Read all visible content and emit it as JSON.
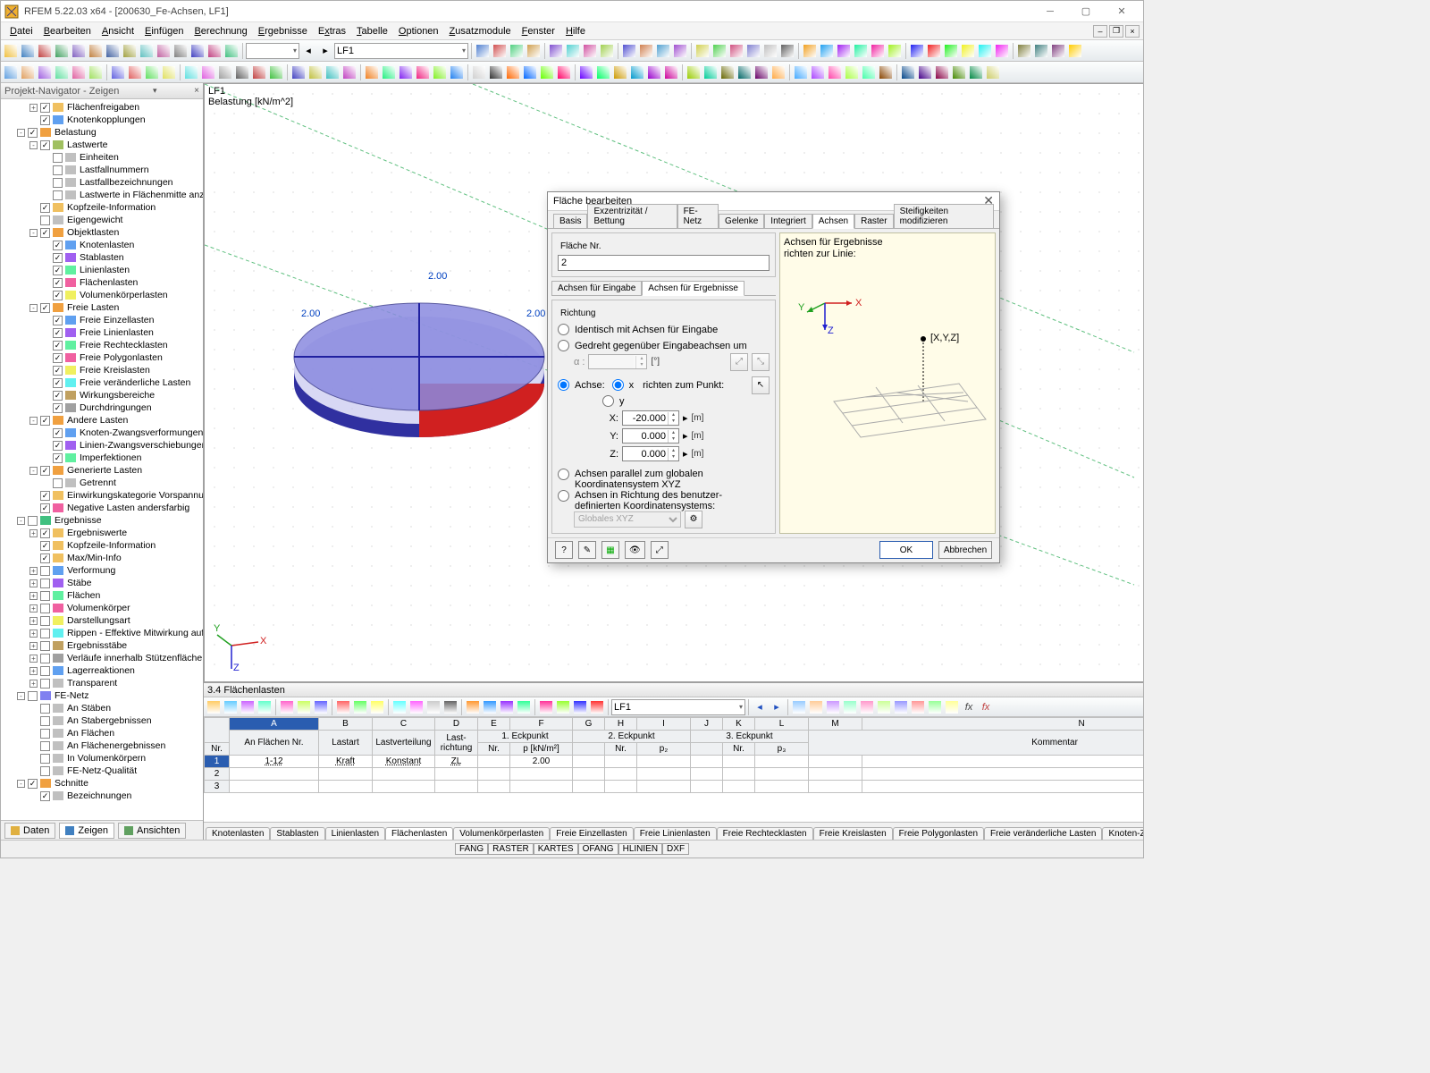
{
  "app": {
    "title": "RFEM 5.22.03 x64 - [200630_Fe-Achsen, LF1]"
  },
  "menus": [
    "Datei",
    "Bearbeiten",
    "Ansicht",
    "Einfügen",
    "Berechnung",
    "Ergebnisse",
    "Extras",
    "Tabelle",
    "Optionen",
    "Zusatzmodule",
    "Fenster",
    "Hilfe"
  ],
  "toolbar1": {
    "combo1": "",
    "combo2": "LF1"
  },
  "navigator": {
    "title": "Projekt-Navigator - Zeigen",
    "nodes": [
      {
        "d": 2,
        "e": "+",
        "c": true,
        "i": "ff",
        "t": "Flächenfreigaben"
      },
      {
        "d": 2,
        "e": " ",
        "c": true,
        "i": "kk",
        "t": "Knotenkopplungen"
      },
      {
        "d": 1,
        "e": "-",
        "c": true,
        "i": "bl",
        "t": "Belastung"
      },
      {
        "d": 2,
        "e": "-",
        "c": true,
        "i": "lw",
        "t": "Lastwerte"
      },
      {
        "d": 3,
        "e": " ",
        "c": false,
        "i": "ei",
        "t": "Einheiten"
      },
      {
        "d": 3,
        "e": " ",
        "c": false,
        "i": "ln",
        "t": "Lastfallnummern"
      },
      {
        "d": 3,
        "e": " ",
        "c": false,
        "i": "lb",
        "t": "Lastfallbezeichnungen"
      },
      {
        "d": 3,
        "e": " ",
        "c": false,
        "i": "lf",
        "t": "Lastwerte in Flächenmitte anzeigen"
      },
      {
        "d": 2,
        "e": " ",
        "c": true,
        "i": "ki",
        "t": "Kopfzeile-Information"
      },
      {
        "d": 2,
        "e": " ",
        "c": false,
        "i": "eg",
        "t": "Eigengewicht"
      },
      {
        "d": 2,
        "e": "-",
        "c": true,
        "i": "ol",
        "t": "Objektlasten"
      },
      {
        "d": 3,
        "e": " ",
        "c": true,
        "i": "kl",
        "t": "Knotenlasten"
      },
      {
        "d": 3,
        "e": " ",
        "c": true,
        "i": "sl",
        "t": "Stablasten"
      },
      {
        "d": 3,
        "e": " ",
        "c": true,
        "i": "ll",
        "t": "Linienlasten"
      },
      {
        "d": 3,
        "e": " ",
        "c": true,
        "i": "fl",
        "t": "Flächenlasten"
      },
      {
        "d": 3,
        "e": " ",
        "c": true,
        "i": "vl",
        "t": "Volumenkörperlasten"
      },
      {
        "d": 2,
        "e": "-",
        "c": true,
        "i": "fr",
        "t": "Freie Lasten"
      },
      {
        "d": 3,
        "e": " ",
        "c": true,
        "i": "fe",
        "t": "Freie Einzellasten"
      },
      {
        "d": 3,
        "e": " ",
        "c": true,
        "i": "fi",
        "t": "Freie Linienlasten"
      },
      {
        "d": 3,
        "e": " ",
        "c": true,
        "i": "fk",
        "t": "Freie Rechtecklasten"
      },
      {
        "d": 3,
        "e": " ",
        "c": true,
        "i": "fp",
        "t": "Freie Polygonlasten"
      },
      {
        "d": 3,
        "e": " ",
        "c": true,
        "i": "fc",
        "t": "Freie Kreislasten"
      },
      {
        "d": 3,
        "e": " ",
        "c": true,
        "i": "fv",
        "t": "Freie veränderliche Lasten"
      },
      {
        "d": 3,
        "e": " ",
        "c": true,
        "i": "wb",
        "t": "Wirkungsbereiche"
      },
      {
        "d": 3,
        "e": " ",
        "c": true,
        "i": "dd",
        "t": "Durchdringungen"
      },
      {
        "d": 2,
        "e": "-",
        "c": true,
        "i": "al",
        "t": "Andere Lasten"
      },
      {
        "d": 3,
        "e": " ",
        "c": true,
        "i": "kz",
        "t": "Knoten-Zwangsverformungen"
      },
      {
        "d": 3,
        "e": " ",
        "c": true,
        "i": "lz",
        "t": "Linien-Zwangsverschiebungen"
      },
      {
        "d": 3,
        "e": " ",
        "c": true,
        "i": "im",
        "t": "Imperfektionen"
      },
      {
        "d": 2,
        "e": "-",
        "c": true,
        "i": "gl",
        "t": "Generierte Lasten"
      },
      {
        "d": 3,
        "e": " ",
        "c": false,
        "i": "gt",
        "t": "Getrennt"
      },
      {
        "d": 2,
        "e": " ",
        "c": true,
        "i": "ev",
        "t": "Einwirkungskategorie Vorspannung"
      },
      {
        "d": 2,
        "e": " ",
        "c": true,
        "i": "na",
        "t": "Negative Lasten andersfarbig"
      },
      {
        "d": 1,
        "e": "-",
        "c": false,
        "i": "er",
        "t": "Ergebnisse"
      },
      {
        "d": 2,
        "e": "+",
        "c": true,
        "i": "ew",
        "t": "Ergebniswerte"
      },
      {
        "d": 2,
        "e": " ",
        "c": true,
        "i": "ki",
        "t": "Kopfzeile-Information"
      },
      {
        "d": 2,
        "e": " ",
        "c": true,
        "i": "mm",
        "t": "Max/Min-Info"
      },
      {
        "d": 2,
        "e": "+",
        "c": false,
        "i": "vf",
        "t": "Verformung"
      },
      {
        "d": 2,
        "e": "+",
        "c": false,
        "i": "st",
        "t": "Stäbe"
      },
      {
        "d": 2,
        "e": "+",
        "c": false,
        "i": "fa",
        "t": "Flächen"
      },
      {
        "d": 2,
        "e": "+",
        "c": false,
        "i": "vk",
        "t": "Volumenkörper"
      },
      {
        "d": 2,
        "e": "+",
        "c": false,
        "i": "da",
        "t": "Darstellungsart"
      },
      {
        "d": 2,
        "e": "+",
        "c": false,
        "i": "ri",
        "t": "Rippen - Effektive Mitwirkung auf Fläche"
      },
      {
        "d": 2,
        "e": "+",
        "c": false,
        "i": "es",
        "t": "Ergebnisstäbe"
      },
      {
        "d": 2,
        "e": "+",
        "c": false,
        "i": "vi",
        "t": "Verläufe innerhalb Stützenfläche"
      },
      {
        "d": 2,
        "e": "+",
        "c": false,
        "i": "lr",
        "t": "Lagerreaktionen"
      },
      {
        "d": 2,
        "e": "+",
        "c": false,
        "i": "tr",
        "t": "Transparent"
      },
      {
        "d": 1,
        "e": "-",
        "c": false,
        "i": "fn",
        "t": "FE-Netz"
      },
      {
        "d": 2,
        "e": " ",
        "c": false,
        "i": "as",
        "t": "An Stäben"
      },
      {
        "d": 2,
        "e": " ",
        "c": false,
        "i": "ae",
        "t": "An Stabergebnissen"
      },
      {
        "d": 2,
        "e": " ",
        "c": false,
        "i": "af",
        "t": "An Flächen"
      },
      {
        "d": 2,
        "e": " ",
        "c": false,
        "i": "ag",
        "t": "An Flächenergebnissen"
      },
      {
        "d": 2,
        "e": " ",
        "c": false,
        "i": "iv",
        "t": "In Volumenkörpern"
      },
      {
        "d": 2,
        "e": " ",
        "c": false,
        "i": "fq",
        "t": "FE-Netz-Qualität"
      },
      {
        "d": 1,
        "e": "-",
        "c": true,
        "i": "sc",
        "t": "Schnitte"
      },
      {
        "d": 2,
        "e": " ",
        "c": true,
        "i": "bz",
        "t": "Bezeichnungen"
      }
    ]
  },
  "bottomtabs": [
    "Daten",
    "Zeigen",
    "Ansichten"
  ],
  "viewport": {
    "l1": "LF1",
    "l2": "Belastung [kN/m^2]"
  },
  "tablepane": {
    "title": "3.4 Flächenlasten",
    "combo": "LF1",
    "collabels": [
      "",
      "A",
      "B",
      "C",
      "D",
      "E",
      "F",
      "G",
      "H",
      "I",
      "J",
      "K",
      "L",
      "M",
      "N"
    ],
    "group1": "1. Eckpunkt",
    "group2": "2. Eckpunkt",
    "group3": "3. Eckpunkt",
    "headers": [
      "Nr.",
      "An Flächen Nr.",
      "Lastart",
      "Lastverteilung",
      "Last-\nrichtung",
      "Nr.",
      "p [kN/m²]",
      "Nr.",
      "p₂",
      "Nr.",
      "p₃",
      "Kommentar"
    ],
    "rows": [
      {
        "n": "1",
        "cells": [
          "1-12",
          "Kraft",
          "Konstant",
          "ZL",
          "",
          "2.00",
          "",
          "",
          "",
          "",
          ""
        ]
      },
      {
        "n": "2",
        "cells": [
          "",
          "",
          "",
          "",
          "",
          "",
          "",
          "",
          "",
          "",
          ""
        ]
      },
      {
        "n": "3",
        "cells": [
          "",
          "",
          "",
          "",
          "",
          "",
          "",
          "",
          "",
          "",
          ""
        ]
      }
    ],
    "tabs": [
      "Knotenlasten",
      "Stablasten",
      "Linienlasten",
      "Flächenlasten",
      "Volumenkörperlasten",
      "Freie Einzellasten",
      "Freie Linienlasten",
      "Freie Rechtecklasten",
      "Freie Kreislasten",
      "Freie Polygonlasten",
      "Freie veränderliche Lasten",
      "Knoten-Zwangsverformungen"
    ],
    "tabactive": 3
  },
  "snap": [
    "FANG",
    "RASTER",
    "KARTES",
    "OFANG",
    "HLINIEN",
    "DXF"
  ],
  "dialog": {
    "title": "Fläche bearbeiten",
    "tabs": [
      "Basis",
      "Exzentrizität / Bettung",
      "FE-Netz",
      "Gelenke",
      "Integriert",
      "Achsen",
      "Raster",
      "Steifigkeiten modifizieren"
    ],
    "tabactive": 5,
    "flaechenr_label": "Fläche Nr.",
    "flaechenr": "2",
    "subtabs": [
      "Achsen für Eingabe",
      "Achsen für Ergebnisse"
    ],
    "subtabactive": 1,
    "richtung_label": "Richtung",
    "opt_identisch": "Identisch mit Achsen für Eingabe",
    "opt_gedreht": "Gedreht gegenüber Eingabeachsen um",
    "alpha_label": "α :",
    "alpha_unit": "[°]",
    "opt_achse": "Achse:",
    "achse_x": "x",
    "achse_y": "y",
    "richten_label": "richten zum Punkt:",
    "X": "-20.000",
    "Y": "0.000",
    "Z": "0.000",
    "coord_unit": "[m]",
    "opt_parallel_l1": "Achsen parallel zum globalen",
    "opt_parallel_l2": "Koordinatensystem XYZ",
    "opt_user_l1": "Achsen in Richtung des benutzer-",
    "opt_user_l2": "definierten Koordinatensystems:",
    "coord_sys": "Globales XYZ",
    "right_title_l1": "Achsen für Ergebnisse",
    "right_title_l2": "richten zur Linie:",
    "xyz": "[X,Y,Z]",
    "ok": "OK",
    "cancel": "Abbrechen"
  },
  "colors": {
    "accent": "#2a5db0",
    "model_top": "#8a8ae0",
    "model_mid": "#4040c0",
    "model_red": "#d02020",
    "model_green": "#20c020"
  }
}
